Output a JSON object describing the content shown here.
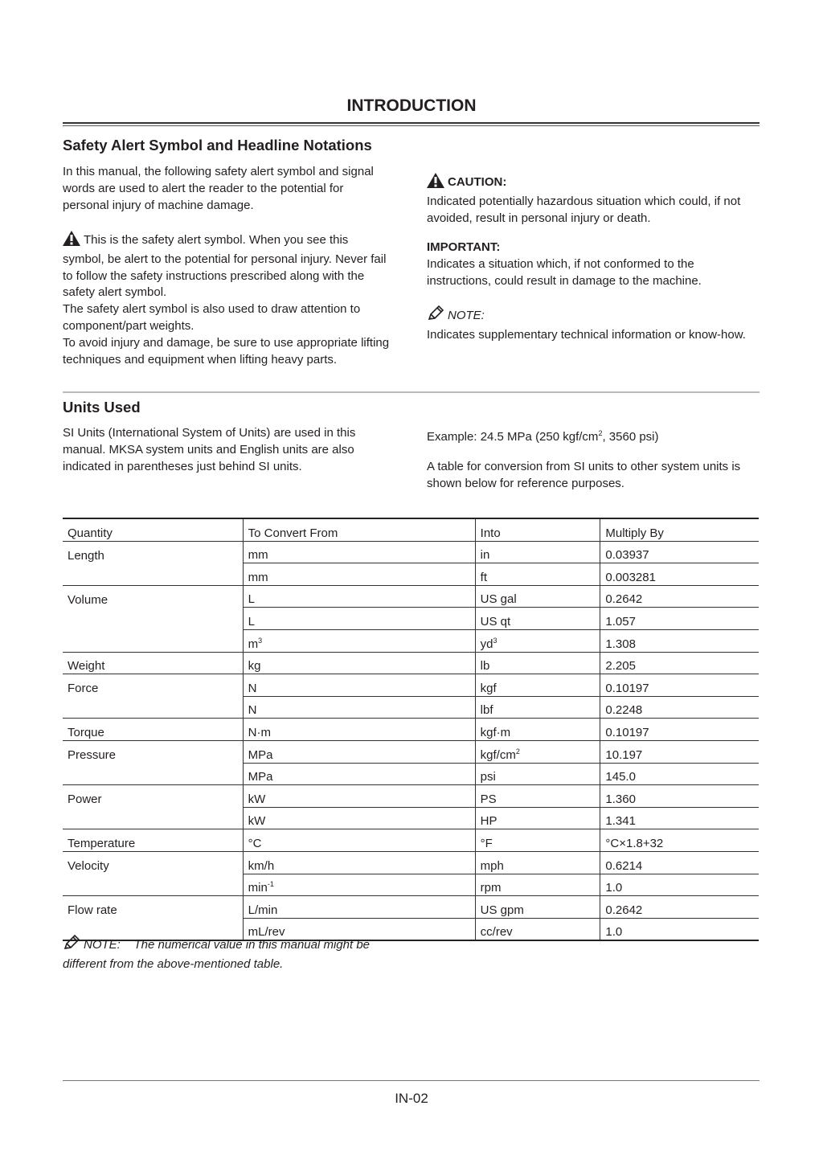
{
  "page_title": "INTRODUCTION",
  "safety": {
    "heading": "Safety Alert Symbol and Headline Notations",
    "intro": "In this manual, the following safety alert symbol and signal words are used to alert the reader to the potential for personal injury of machine damage.",
    "symbol_text": "This is the safety alert symbol. When you see this symbol, be alert to the potential for personal injury. Never fail to follow the safety instructions prescribed along with the safety alert symbol.",
    "symbol_text2": "The safety alert symbol is also used to draw attention to component/part weights.",
    "symbol_text3": "To avoid injury and damage, be sure to use appropriate lifting techniques and equipment when lifting heavy parts.",
    "caution_label": "CAUTION:",
    "caution_text": "Indicated potentially hazardous situation which could, if not avoided, result in personal injury or death.",
    "important_label": "IMPORTANT:",
    "important_text": "Indicates a situation which, if not conformed to the instructions, could result in damage to the machine.",
    "note_label": "NOTE:",
    "note_text": "Indicates supplementary technical information or know-how."
  },
  "units": {
    "heading": "Units Used",
    "intro": "SI Units (International System of Units) are used in this manual. MKSA system units and English units are also indicated in parentheses just behind SI units.",
    "example_prefix": "Example: 24.5 MPa (250 kgf/cm",
    "example_sup": "2",
    "example_suffix": ", 3560 psi)",
    "table_intro": "A table for conversion from SI units to other system units is shown below for reference purposes."
  },
  "table": {
    "headers": [
      "Quantity",
      "To Convert From",
      "Into",
      "Multiply By"
    ],
    "rows": [
      {
        "quantity": "Length",
        "from": "mm",
        "into": "in",
        "factor": "0.03937"
      },
      {
        "quantity": "",
        "from": "mm",
        "into": "ft",
        "factor": "0.003281"
      },
      {
        "quantity": "Volume",
        "from": "L",
        "into": "US gal",
        "factor": "0.2642"
      },
      {
        "quantity": "",
        "from": "L",
        "into": "US qt",
        "factor": "1.057"
      },
      {
        "quantity": "",
        "from": "m",
        "from_sup": "3",
        "into": "yd",
        "into_sup": "3",
        "factor": "1.308"
      },
      {
        "quantity": "Weight",
        "from": "kg",
        "into": "lb",
        "factor": "2.205"
      },
      {
        "quantity": "Force",
        "from": "N",
        "into": "kgf",
        "factor": "0.10197"
      },
      {
        "quantity": "",
        "from": "N",
        "into": "lbf",
        "factor": "0.2248"
      },
      {
        "quantity": "Torque",
        "from": "N·m",
        "into": "kgf·m",
        "factor": "0.10197"
      },
      {
        "quantity": "Pressure",
        "from": "MPa",
        "into": "kgf/cm",
        "into_sup": "2",
        "factor": "10.197"
      },
      {
        "quantity": "",
        "from": "MPa",
        "into": "psi",
        "factor": "145.0"
      },
      {
        "quantity": "Power",
        "from": "kW",
        "into": "PS",
        "factor": "1.360"
      },
      {
        "quantity": "",
        "from": "kW",
        "into": "HP",
        "factor": "1.341"
      },
      {
        "quantity": "Temperature",
        "from": "°C",
        "into": "°F",
        "factor": "°C×1.8+32"
      },
      {
        "quantity": "Velocity",
        "from": "km/h",
        "into": "mph",
        "factor": "0.6214"
      },
      {
        "quantity": "",
        "from": "min",
        "from_sup": "-1",
        "into": "rpm",
        "factor": "1.0"
      },
      {
        "quantity": "Flow rate",
        "from": "L/min",
        "into": "US gpm",
        "factor": "0.2642"
      },
      {
        "quantity": "",
        "from": "mL/rev",
        "into": "cc/rev",
        "factor": "1.0"
      }
    ]
  },
  "footnote": {
    "label": "NOTE:",
    "text": "The numerical value in this manual might be different from the above-mentioned table."
  },
  "page_number": "IN-02"
}
